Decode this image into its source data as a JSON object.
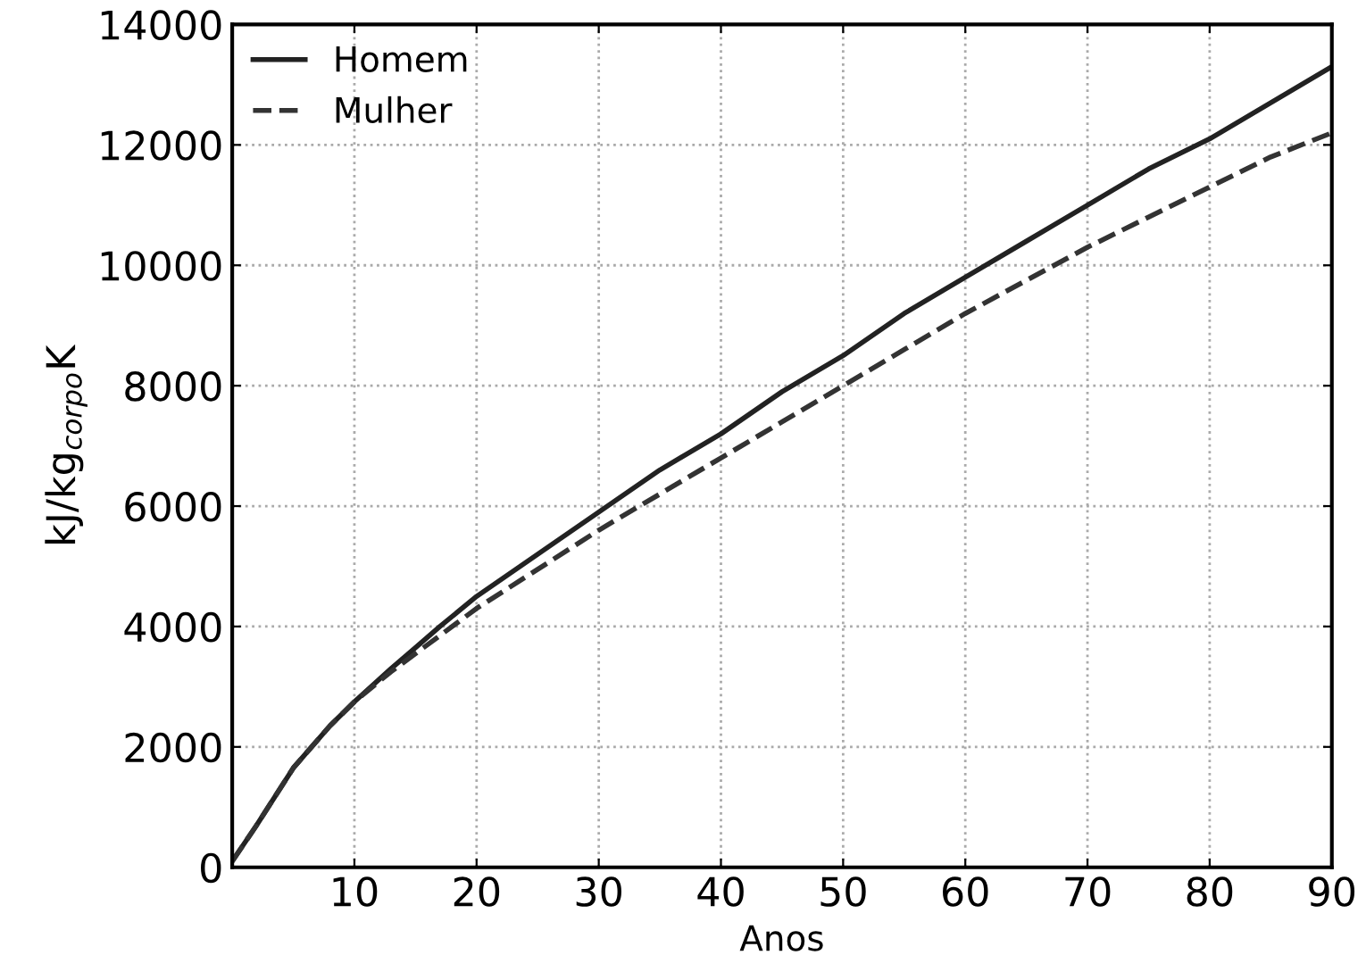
{
  "chart_data": {
    "type": "line",
    "xlabel": "Anos",
    "ylabel": "kJ/kg$_{corpo}$K",
    "xlim": [
      0,
      90
    ],
    "ylim": [
      0,
      14000
    ],
    "xticks": [
      10,
      20,
      30,
      40,
      50,
      60,
      70,
      80,
      90
    ],
    "yticks": [
      0,
      2000,
      4000,
      6000,
      8000,
      10000,
      12000,
      14000
    ],
    "grid": true,
    "legend": "top left",
    "series": [
      {
        "name": "Homem",
        "color": "#222222",
        "line_style": "solid",
        "x": [
          0,
          2,
          5,
          8,
          10,
          13,
          15,
          17,
          20,
          25,
          30,
          35,
          40,
          45,
          50,
          55,
          60,
          65,
          70,
          75,
          80,
          85,
          90
        ],
        "values": [
          100,
          700,
          1650,
          2350,
          2750,
          3300,
          3650,
          4000,
          4500,
          5200,
          5900,
          6600,
          7200,
          7900,
          8500,
          9200,
          9800,
          10400,
          11000,
          11600,
          12100,
          12700,
          13300
        ]
      },
      {
        "name": "Mulher",
        "color": "#333333",
        "line_style": "dashed",
        "x": [
          0,
          2,
          5,
          8,
          10,
          13,
          15,
          17,
          20,
          25,
          30,
          35,
          40,
          45,
          50,
          55,
          60,
          65,
          70,
          75,
          80,
          85,
          90
        ],
        "values": [
          100,
          700,
          1650,
          2350,
          2750,
          3250,
          3550,
          3850,
          4300,
          4950,
          5600,
          6200,
          6800,
          7400,
          8000,
          8600,
          9200,
          9750,
          10300,
          10800,
          11300,
          11800,
          12200
        ]
      }
    ]
  }
}
